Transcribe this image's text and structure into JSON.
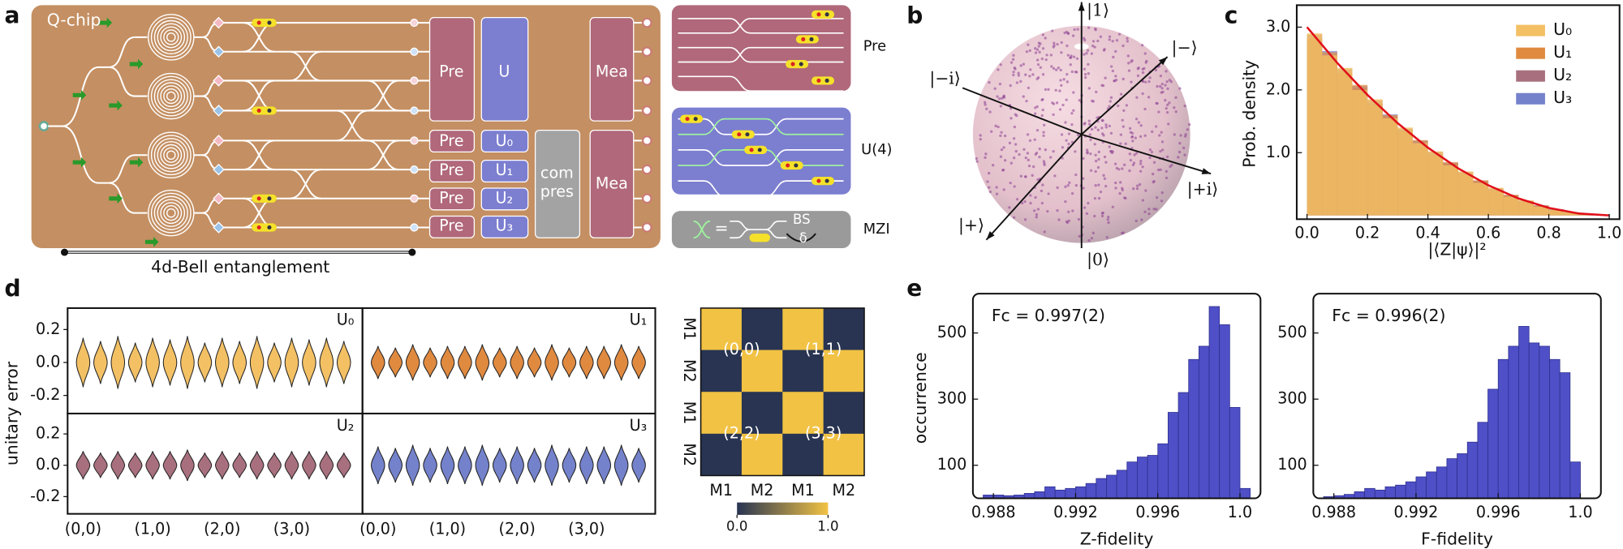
{
  "panel_labels": [
    "a",
    "b",
    "c",
    "d",
    "e"
  ],
  "chip": {
    "title": "Q-chip",
    "pre": "Pre",
    "u": "U",
    "mea": "Mea",
    "pre_small": "Pre",
    "u_small": [
      "U₀",
      "U₁",
      "U₂",
      "U₃"
    ],
    "compress": [
      "com",
      "pres"
    ],
    "mea_small": "Mea",
    "entanglement": "4d-Bell entanglement"
  },
  "insets": {
    "pre": "Pre",
    "u4": "U(4)",
    "mzi": "MZI",
    "bs": "BS",
    "delta": "δ",
    "equals": "="
  },
  "bloch": {
    "one": "|1⟩",
    "zero": "|0⟩",
    "plus": "|+⟩",
    "minus": "|−⟩",
    "minus_i": "|−i⟩",
    "plus_i": "|+i⟩"
  },
  "chart_data": [
    {
      "type": "histogram",
      "xlabel": "|⟨Z|ψ⟩|²",
      "ylabel": "Prob. density",
      "bins": [
        0,
        0.05,
        0.1,
        0.15,
        0.2,
        0.25,
        0.3,
        0.35,
        0.4,
        0.45,
        0.5,
        0.55,
        0.6,
        0.65,
        0.7,
        0.75,
        0.8,
        0.85,
        0.9,
        0.95,
        1
      ],
      "series": [
        {
          "name": "U₀",
          "color": "#f3c064",
          "values": [
            2.9,
            2.55,
            2.35,
            2.0,
            1.85,
            1.55,
            1.4,
            1.15,
            1.02,
            0.8,
            0.7,
            0.52,
            0.44,
            0.3,
            0.24,
            0.14,
            0.09,
            0.05,
            0.02,
            0
          ]
        },
        {
          "name": "U₁",
          "color": "#e08a40",
          "values": [
            2.82,
            2.6,
            2.27,
            2.08,
            1.76,
            1.6,
            1.34,
            1.2,
            0.96,
            0.85,
            0.66,
            0.56,
            0.4,
            0.33,
            0.22,
            0.16,
            0.08,
            0.05,
            0.02,
            0
          ]
        },
        {
          "name": "U₂",
          "color": "#a8707e",
          "values": [
            2.88,
            2.52,
            2.33,
            2.02,
            1.83,
            1.57,
            1.38,
            1.14,
            1.01,
            0.82,
            0.69,
            0.53,
            0.43,
            0.31,
            0.23,
            0.15,
            0.1,
            0.04,
            0.02,
            0
          ]
        },
        {
          "name": "U₃",
          "color": "#7482cc",
          "values": [
            2.8,
            2.62,
            2.26,
            2.06,
            1.78,
            1.61,
            1.35,
            1.19,
            0.97,
            0.84,
            0.67,
            0.55,
            0.41,
            0.32,
            0.22,
            0.16,
            0.09,
            0.05,
            0.01,
            0
          ]
        }
      ],
      "curve": {
        "color": "#e0101a",
        "x": [
          0,
          0.1,
          0.2,
          0.3,
          0.4,
          0.5,
          0.6,
          0.7,
          0.8,
          0.9,
          1
        ],
        "y": [
          3,
          2.43,
          1.92,
          1.47,
          1.08,
          0.75,
          0.48,
          0.27,
          0.12,
          0.03,
          0
        ]
      },
      "xlim": [
        -0.034,
        1.034
      ],
      "ylim": [
        -0.06,
        3.35
      ],
      "xticks": [
        {
          "value": 0,
          "label": "0.0"
        },
        0.2,
        0.4,
        0.6,
        0.8,
        {
          "value": 1,
          "label": "1.0"
        }
      ],
      "yticks": [
        {
          "value": 1,
          "label": "1.0"
        },
        {
          "value": 2,
          "label": "2.0"
        },
        {
          "value": 3,
          "label": "3.0"
        }
      ],
      "legend": "upper right"
    },
    {
      "type": "violin",
      "ylabel": "unitary error",
      "categories": [
        "(0,0)",
        null,
        null,
        null,
        "(1,0)",
        null,
        null,
        null,
        "(2,0)",
        null,
        null,
        null,
        "(3,0)",
        null,
        null,
        null
      ],
      "ylim": [
        -0.31,
        0.33
      ],
      "yticks": [
        0.2,
        {
          "value": 0,
          "label": "0.0"
        },
        -0.2
      ],
      "series": [
        {
          "name": "U₀",
          "color": "#f3c064",
          "values": [
            0.15,
            0.13,
            0.16,
            0.12,
            0.15,
            0.14,
            0.16,
            0.12,
            0.15,
            0.13,
            0.16,
            0.12,
            0.15,
            0.14,
            0.15,
            0.13
          ]
        },
        {
          "name": "U₁",
          "color": "#e08a40",
          "values": [
            0.1,
            0.09,
            0.11,
            0.09,
            0.1,
            0.1,
            0.11,
            0.09,
            0.1,
            0.09,
            0.11,
            0.09,
            0.1,
            0.1,
            0.11,
            0.1
          ]
        },
        {
          "name": "U₂",
          "color": "#a8707e",
          "values": [
            0.09,
            0.08,
            0.09,
            0.08,
            0.09,
            0.09,
            0.1,
            0.08,
            0.09,
            0.08,
            0.09,
            0.08,
            0.09,
            0.09,
            0.09,
            0.08
          ]
        },
        {
          "name": "U₃",
          "color": "#7482cc",
          "values": [
            0.12,
            0.11,
            0.13,
            0.11,
            0.12,
            0.12,
            0.13,
            0.11,
            0.12,
            0.11,
            0.13,
            0.11,
            0.12,
            0.12,
            0.13,
            0.11
          ]
        }
      ]
    },
    {
      "type": "heatmap",
      "x_categories": [
        "M1",
        "M2",
        "M1",
        "M2"
      ],
      "y_categories": [
        "M1",
        "M2",
        "M1",
        "M2"
      ],
      "values": [
        [
          1,
          0,
          1,
          0
        ],
        [
          0,
          1,
          0,
          1
        ],
        [
          1,
          0,
          1,
          0
        ],
        [
          0,
          1,
          0,
          1
        ]
      ],
      "annotations": [
        "(0,0)",
        "(1,1)",
        "(2,2)",
        "(3,3)"
      ],
      "clim": [
        0,
        1
      ],
      "cticks": [
        {
          "value": 0,
          "label": "0.0"
        },
        {
          "value": 1,
          "label": "1.0"
        }
      ],
      "colors": [
        "#283452",
        "#f1c244"
      ]
    },
    {
      "type": "histogram",
      "xlabel": "Z-fidelity",
      "ylabel": "occurrence",
      "annotation": "Fc = 0.997(2)",
      "color": "#4f50c8",
      "bins": [
        0.9875,
        0.988,
        0.9885,
        0.989,
        0.9895,
        0.99,
        0.9905,
        0.991,
        0.9915,
        0.992,
        0.9925,
        0.993,
        0.9935,
        0.994,
        0.9945,
        0.995,
        0.9955,
        0.996,
        0.9965,
        0.997,
        0.9975,
        0.998,
        0.9985,
        0.999,
        0.9995,
        1,
        1.0005
      ],
      "values": [
        10,
        10,
        8,
        10,
        15,
        20,
        35,
        25,
        30,
        35,
        45,
        60,
        70,
        85,
        110,
        125,
        130,
        165,
        260,
        320,
        420,
        460,
        580,
        525,
        275,
        30
      ],
      "xlim": [
        0.987,
        1.001
      ],
      "ylim": [
        0,
        619
      ],
      "xticks": [
        0.988,
        0.992,
        0.996,
        {
          "value": 1,
          "label": "1.0"
        }
      ],
      "yticks": [
        100,
        300,
        500
      ]
    },
    {
      "type": "histogram",
      "xlabel": "F-fidelity",
      "annotation": "Fc = 0.996(2)",
      "color": "#4f50c8",
      "bins": [
        0.9875,
        0.988,
        0.9885,
        0.989,
        0.9895,
        0.99,
        0.9905,
        0.991,
        0.9915,
        0.992,
        0.9925,
        0.993,
        0.9935,
        0.994,
        0.9945,
        0.995,
        0.9955,
        0.996,
        0.9965,
        0.997,
        0.9975,
        0.998,
        0.9985,
        0.999,
        0.9995,
        1,
        1.0005
      ],
      "values": [
        5,
        8,
        12,
        20,
        30,
        25,
        35,
        40,
        50,
        65,
        80,
        95,
        120,
        135,
        170,
        230,
        330,
        420,
        460,
        520,
        470,
        460,
        420,
        380,
        110,
        0
      ],
      "xlim": [
        0.987,
        1.001
      ],
      "ylim": [
        0,
        619
      ],
      "xticks": [
        0.988,
        0.992,
        0.996,
        {
          "value": 1,
          "label": "1.0"
        }
      ],
      "yticks": [
        100,
        300,
        500
      ]
    }
  ]
}
